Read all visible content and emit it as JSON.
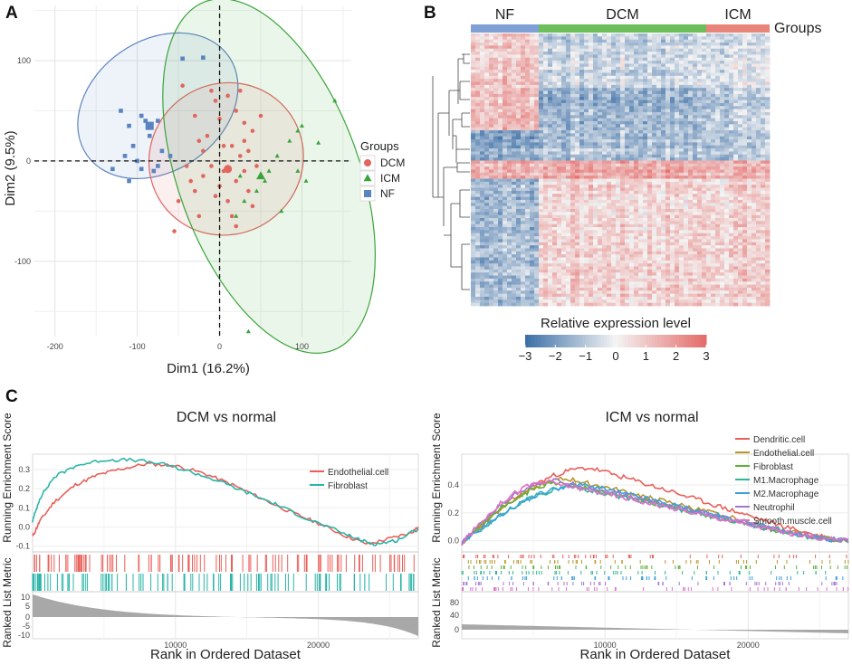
{
  "panels": {
    "a": {
      "letter": "A"
    },
    "b": {
      "letter": "B"
    },
    "c": {
      "letter": "C"
    }
  },
  "colors": {
    "DCM": "#e0665e",
    "ICM": "#3aa43a",
    "NF": "#5a84c0",
    "hm_low": "#3b6ea6",
    "hm_mid": "#f4f4f4",
    "hm_high": "#e46a68",
    "gsea_grey": "#a8a8a8",
    "endothelial": "#e8605a",
    "fibroblast": "#2bb5a8",
    "dendritic": "#e8605a",
    "endothelial_icm": "#b8972a",
    "fibroblast_icm": "#5fb13a",
    "m1": "#2fb892",
    "m2": "#3a9fe0",
    "neutrophil": "#a07ad0",
    "smooth": "#e070c8"
  },
  "chart_data": [
    {
      "id": "pca",
      "type": "scatter",
      "xlabel": "Dim1 (16.2%)",
      "ylabel": "Dim2 (9.5%)",
      "xlim": [
        -225,
        160
      ],
      "ylim": [
        -175,
        155
      ],
      "xticks": [
        "-200",
        "-100",
        "0",
        "100"
      ],
      "yticks": [
        "100",
        "0",
        "-100"
      ],
      "legend_title": "Groups",
      "series": [
        {
          "name": "DCM",
          "marker": "circle",
          "points": [
            [
              -45,
              75
            ],
            [
              -30,
              45
            ],
            [
              -25,
              20
            ],
            [
              -5,
              60
            ],
            [
              0,
              42
            ],
            [
              10,
              65
            ],
            [
              20,
              50
            ],
            [
              30,
              38
            ],
            [
              40,
              30
            ],
            [
              50,
              45
            ],
            [
              -40,
              -5
            ],
            [
              -35,
              -20
            ],
            [
              -30,
              -30
            ],
            [
              -20,
              -15
            ],
            [
              -10,
              -5
            ],
            [
              -5,
              -35
            ],
            [
              0,
              -25
            ],
            [
              5,
              -10
            ],
            [
              10,
              -40
            ],
            [
              15,
              -55
            ],
            [
              20,
              -20
            ],
            [
              25,
              5
            ],
            [
              30,
              -10
            ],
            [
              35,
              -30
            ],
            [
              40,
              -45
            ],
            [
              -20,
              10
            ],
            [
              -15,
              25
            ],
            [
              5,
              15
            ],
            [
              15,
              15
            ],
            [
              30,
              20
            ],
            [
              -50,
              -40
            ],
            [
              -55,
              -70
            ],
            [
              -25,
              -55
            ],
            [
              20,
              -65
            ],
            [
              35,
              10
            ],
            [
              45,
              -5
            ],
            [
              -10,
              70
            ],
            [
              25,
              70
            ]
          ],
          "centroid": [
            10,
            -8
          ]
        },
        {
          "name": "ICM",
          "marker": "triangle",
          "points": [
            [
              95,
              30
            ],
            [
              100,
              35
            ],
            [
              140,
              60
            ],
            [
              120,
              18
            ],
            [
              85,
              20
            ],
            [
              70,
              5
            ],
            [
              60,
              -10
            ],
            [
              55,
              -20
            ],
            [
              45,
              -30
            ],
            [
              30,
              -40
            ],
            [
              20,
              -55
            ],
            [
              25,
              -15
            ],
            [
              95,
              -10
            ],
            [
              105,
              -20
            ],
            [
              75,
              -50
            ],
            [
              35,
              -170
            ]
          ],
          "centroid": [
            50,
            -15
          ]
        },
        {
          "name": "NF",
          "marker": "square",
          "points": [
            [
              -45,
              102
            ],
            [
              -20,
              103
            ],
            [
              -120,
              50
            ],
            [
              -110,
              35
            ],
            [
              -95,
              45
            ],
            [
              -90,
              40
            ],
            [
              -75,
              40
            ],
            [
              -130,
              -8
            ],
            [
              -115,
              5
            ],
            [
              -105,
              15
            ],
            [
              -100,
              0
            ],
            [
              -95,
              -8
            ],
            [
              -80,
              -10
            ],
            [
              -70,
              10
            ],
            [
              -60,
              5
            ],
            [
              -110,
              -20
            ],
            [
              -85,
              25
            ],
            [
              -75,
              -5
            ]
          ],
          "centroid": [
            -85,
            35
          ]
        }
      ],
      "ellipses": [
        {
          "group": "NF",
          "cx": -75,
          "cy": 55,
          "rx": 105,
          "ry": 65,
          "angle_deg": 35
        },
        {
          "group": "DCM",
          "cx": 8,
          "cy": 2,
          "rx": 95,
          "ry": 75,
          "angle_deg": 35
        },
        {
          "group": "ICM",
          "cx": 60,
          "cy": -15,
          "rx": 110,
          "ry": 185,
          "angle_deg": 20
        }
      ]
    },
    {
      "id": "heatmap",
      "type": "heatmap",
      "groups": [
        "NF",
        "DCM",
        "ICM"
      ],
      "group_label": "Groups",
      "colorbar_title": "Relative expression level",
      "colorbar_ticks": [
        "−3",
        "−2",
        "−1",
        "0",
        "1",
        "2",
        "3"
      ],
      "range": [
        -3,
        3
      ]
    },
    {
      "id": "gsea_dcm",
      "type": "line",
      "title": "DCM vs normal",
      "ylabel_top": "Running Enrichment Score",
      "ylabel_bottom": "Ranked List Metric",
      "xlabel": "Rank in Ordered Dataset",
      "xticks": [
        "10000",
        "20000"
      ],
      "yticks_es": [
        "0.3",
        "0.2",
        "0.1",
        "0.0",
        "-0.1"
      ],
      "yticks_metric": [
        "10",
        "5",
        "0",
        "-5",
        "-10"
      ],
      "x_max": 27000,
      "es_range": [
        -0.13,
        0.38
      ],
      "series": [
        {
          "name": "Endothelial.cell",
          "color_key": "endothelial",
          "points": [
            [
              0,
              -0.05
            ],
            [
              500,
              0.03
            ],
            [
              1500,
              0.13
            ],
            [
              3000,
              0.22
            ],
            [
              4500,
              0.27
            ],
            [
              6000,
              0.3
            ],
            [
              8000,
              0.33
            ],
            [
              10000,
              0.32
            ],
            [
              12000,
              0.28
            ],
            [
              14000,
              0.22
            ],
            [
              16000,
              0.15
            ],
            [
              18000,
              0.08
            ],
            [
              20000,
              0.02
            ],
            [
              22000,
              -0.05
            ],
            [
              23500,
              -0.09
            ],
            [
              25000,
              -0.06
            ],
            [
              26500,
              -0.03
            ],
            [
              27000,
              0.0
            ]
          ]
        },
        {
          "name": "Fibroblast",
          "color_key": "fibroblast",
          "points": [
            [
              0,
              0.03
            ],
            [
              500,
              0.15
            ],
            [
              1500,
              0.26
            ],
            [
              3000,
              0.32
            ],
            [
              5000,
              0.35
            ],
            [
              7000,
              0.35
            ],
            [
              9000,
              0.33
            ],
            [
              11000,
              0.29
            ],
            [
              13000,
              0.24
            ],
            [
              15000,
              0.18
            ],
            [
              17000,
              0.12
            ],
            [
              19000,
              0.05
            ],
            [
              21000,
              -0.01
            ],
            [
              23000,
              -0.07
            ],
            [
              24000,
              -0.09
            ],
            [
              25500,
              -0.07
            ],
            [
              27000,
              -0.01
            ]
          ]
        }
      ]
    },
    {
      "id": "gsea_icm",
      "type": "line",
      "title": "ICM vs normal",
      "ylabel_top": "Running Enrichment Score",
      "ylabel_bottom": "Ranked List Metric",
      "xlabel": "Rank in Ordered Dataset",
      "xticks": [
        "10000",
        "20000"
      ],
      "yticks_es": [
        "0.4",
        "0.2",
        "0.0"
      ],
      "yticks_metric": [
        "80",
        "40",
        "0"
      ],
      "x_max": 27000,
      "es_range": [
        -0.08,
        0.62
      ],
      "series": [
        {
          "name": "Dendritic.cell",
          "color_key": "dendritic",
          "peak": 0.52,
          "peak_x": 9000
        },
        {
          "name": "Endothelial.cell",
          "color_key": "endothelial_icm",
          "peak": 0.44,
          "peak_x": 7500
        },
        {
          "name": "Fibroblast",
          "color_key": "fibroblast_icm",
          "peak": 0.41,
          "peak_x": 7000
        },
        {
          "name": "M1.Macrophage",
          "color_key": "m1",
          "peak": 0.38,
          "peak_x": 8000
        },
        {
          "name": "M2.Macrophage",
          "color_key": "m2",
          "peak": 0.4,
          "peak_x": 8500
        },
        {
          "name": "Neutrophil",
          "color_key": "neutrophil",
          "peak": 0.43,
          "peak_x": 6500
        },
        {
          "name": "Smooth.muscle.cell",
          "color_key": "smooth",
          "peak": 0.42,
          "peak_x": 6000
        }
      ]
    }
  ]
}
